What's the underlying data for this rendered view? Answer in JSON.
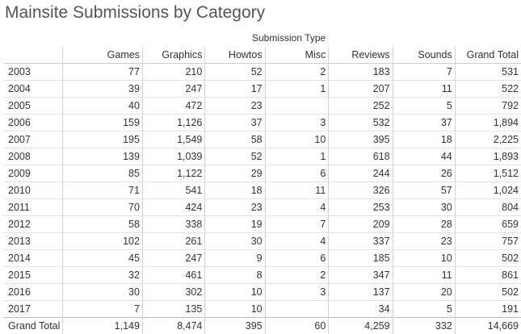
{
  "chart_data": {
    "type": "table",
    "title": "Mainsite Submissions by Category",
    "column_group_label": "Submission Type",
    "columns": [
      "Games",
      "Graphics",
      "Howtos",
      "Misc",
      "Reviews",
      "Sounds",
      "Grand Total"
    ],
    "rows": [
      {
        "year": "2003",
        "values": [
          "77",
          "210",
          "52",
          "2",
          "183",
          "7",
          "531"
        ]
      },
      {
        "year": "2004",
        "values": [
          "39",
          "247",
          "17",
          "1",
          "207",
          "11",
          "522"
        ]
      },
      {
        "year": "2005",
        "values": [
          "40",
          "472",
          "23",
          "",
          "252",
          "5",
          "792"
        ]
      },
      {
        "year": "2006",
        "values": [
          "159",
          "1,126",
          "37",
          "3",
          "532",
          "37",
          "1,894"
        ]
      },
      {
        "year": "2007",
        "values": [
          "195",
          "1,549",
          "58",
          "10",
          "395",
          "18",
          "2,225"
        ]
      },
      {
        "year": "2008",
        "values": [
          "139",
          "1,039",
          "52",
          "1",
          "618",
          "44",
          "1,893"
        ]
      },
      {
        "year": "2009",
        "values": [
          "85",
          "1,122",
          "29",
          "6",
          "244",
          "26",
          "1,512"
        ]
      },
      {
        "year": "2010",
        "values": [
          "71",
          "541",
          "18",
          "11",
          "326",
          "57",
          "1,024"
        ]
      },
      {
        "year": "2011",
        "values": [
          "70",
          "424",
          "23",
          "4",
          "253",
          "30",
          "804"
        ]
      },
      {
        "year": "2012",
        "values": [
          "58",
          "338",
          "19",
          "7",
          "209",
          "28",
          "659"
        ]
      },
      {
        "year": "2013",
        "values": [
          "102",
          "261",
          "30",
          "4",
          "337",
          "23",
          "757"
        ]
      },
      {
        "year": "2014",
        "values": [
          "45",
          "247",
          "9",
          "6",
          "185",
          "10",
          "502"
        ]
      },
      {
        "year": "2015",
        "values": [
          "32",
          "461",
          "8",
          "2",
          "347",
          "11",
          "861"
        ]
      },
      {
        "year": "2016",
        "values": [
          "30",
          "302",
          "10",
          "3",
          "137",
          "20",
          "502"
        ]
      },
      {
        "year": "2017",
        "values": [
          "7",
          "135",
          "10",
          "",
          "34",
          "5",
          "191"
        ]
      }
    ],
    "total_row": {
      "label": "Grand Total",
      "values": [
        "1,149",
        "8,474",
        "395",
        "60",
        "4,259",
        "332",
        "14,669"
      ]
    }
  }
}
